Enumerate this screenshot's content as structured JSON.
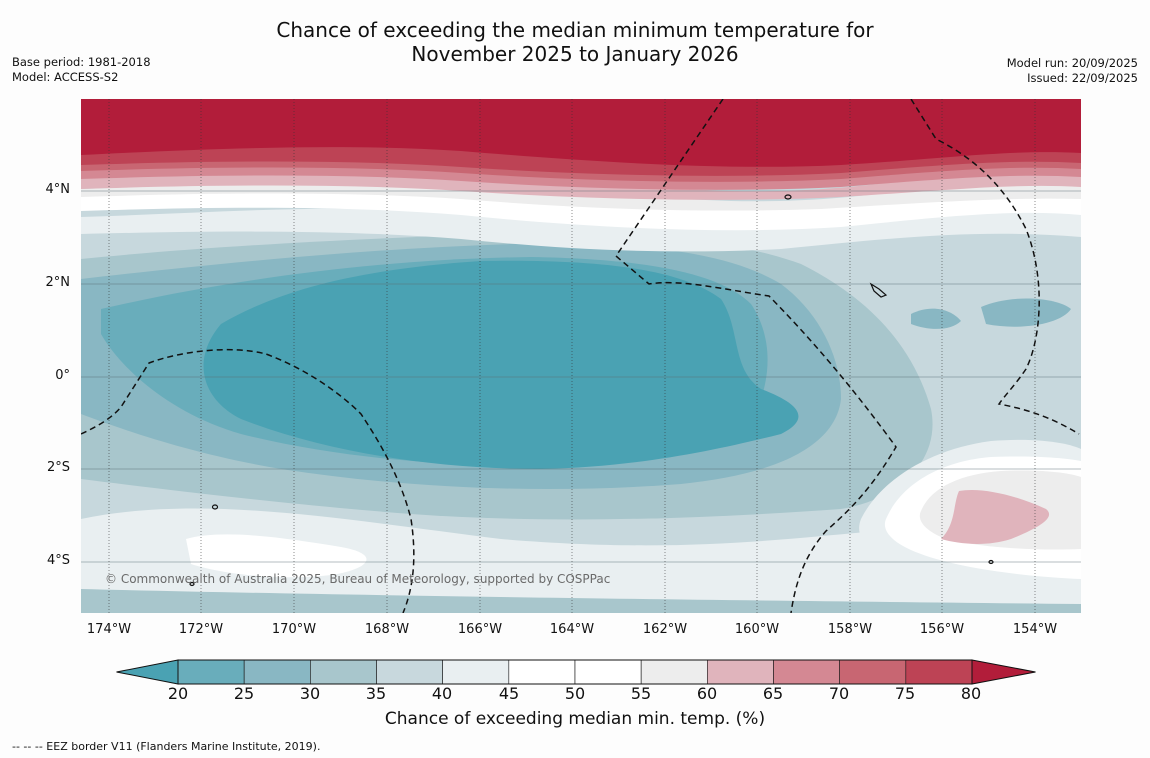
{
  "title_line1": "Chance of exceeding the median minimum temperature for",
  "title_line2": "November 2025 to January 2026",
  "base_period": "Base period: 1981-2018",
  "model": "Model: ACCESS-S2",
  "model_run": "Model run: 20/09/2025",
  "issued": "Issued: 22/09/2025",
  "lat_labels": [
    "4°N",
    "2°N",
    "0°",
    "2°S",
    "4°S"
  ],
  "lon_labels": [
    "174°W",
    "172°W",
    "170°W",
    "168°W",
    "166°W",
    "164°W",
    "162°W",
    "160°W",
    "158°W",
    "156°W",
    "154°W"
  ],
  "copyright": "© Commonwealth of Australia 2025, Bureau of Meteorology, supported by COSPPac",
  "colorbar": {
    "ticks": [
      "20",
      "25",
      "30",
      "35",
      "40",
      "45",
      "50",
      "55",
      "60",
      "65",
      "70",
      "75",
      "80"
    ],
    "colors": [
      "#4aa2b3",
      "#69adbb",
      "#89b7c3",
      "#a8c6cc",
      "#c8d8dd",
      "#e9eff1",
      "#ffffff",
      "#ffffff",
      "#ededed",
      "#e0b4bc",
      "#d48893",
      "#c86672",
      "#bd4355",
      "#b21d3a"
    ],
    "label": "Chance of exceeding median min. temp. (%)"
  },
  "footer": "--  --  -- EEZ border V11 (Flanders Marine Institute, 2019)."
}
